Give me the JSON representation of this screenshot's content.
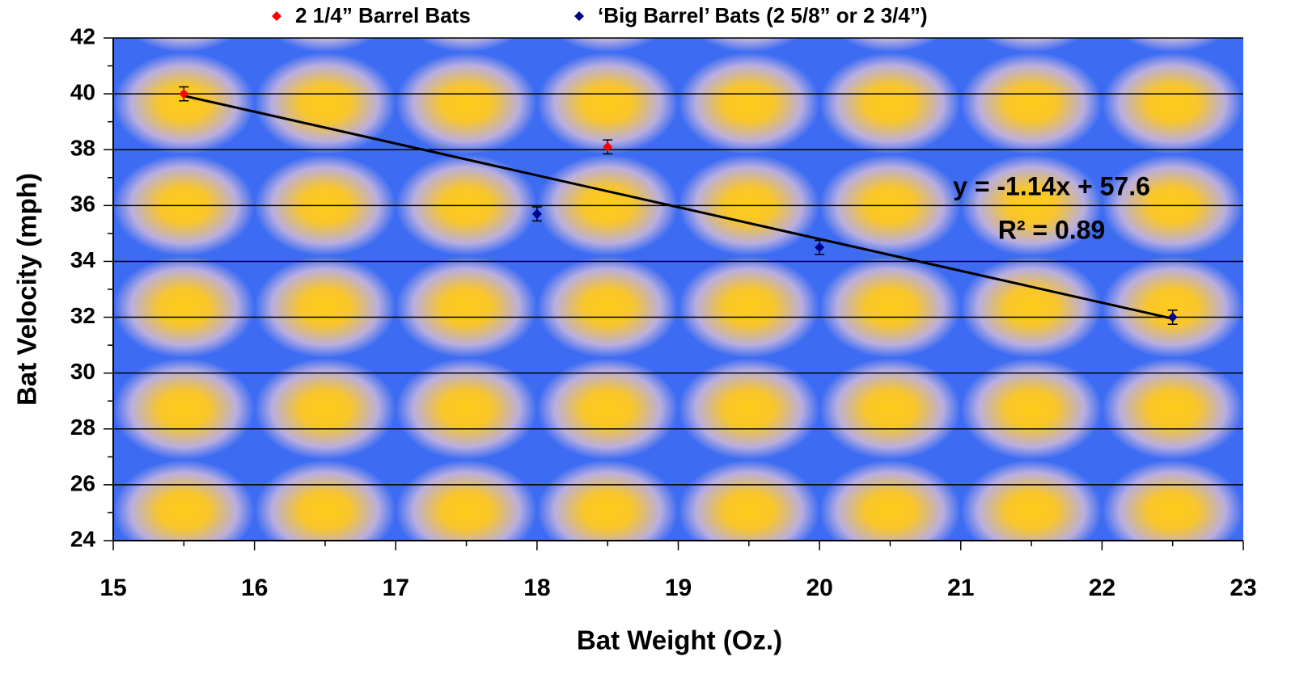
{
  "chart_data": {
    "type": "scatter",
    "x_label": "Bat Weight (Oz.)",
    "y_label": "Bat Velocity (mph)",
    "legend": "top",
    "grid": true,
    "xlim": [
      15,
      23
    ],
    "xticks": [
      15,
      16,
      17,
      18,
      19,
      20,
      21,
      22,
      23
    ],
    "x_minor_ticks": [
      15.5,
      16.5,
      17.5,
      18.5,
      19.5,
      20.5,
      21.5,
      22.5
    ],
    "ylim": [
      24,
      42
    ],
    "yticks": [
      24,
      26,
      28,
      30,
      32,
      34,
      36,
      38,
      40,
      42
    ],
    "y_minor_ticks": [
      25,
      27,
      29,
      31,
      33,
      35,
      37,
      39,
      41
    ],
    "series": [
      {
        "name": "2 1/4” Barrel Bats",
        "color": "#ff0000",
        "x": [
          15.5,
          18.5
        ],
        "values": [
          40.0,
          38.1
        ],
        "errors": [
          0.25,
          0.25
        ]
      },
      {
        "name": "‘Big Barrel’ Bats (2 5/8” or 2 3/4”)",
        "color": "#00008b",
        "x": [
          18,
          20,
          22.5
        ],
        "values": [
          35.7,
          34.5,
          32.0
        ],
        "errors": [
          0.25,
          0.25,
          0.25
        ]
      }
    ],
    "trendline": {
      "slope": -1.14,
      "intercept": 57.6,
      "color": "#000000",
      "equation": "y = -1.14x + 57.6",
      "r_squared": "R² = 0.89"
    }
  }
}
